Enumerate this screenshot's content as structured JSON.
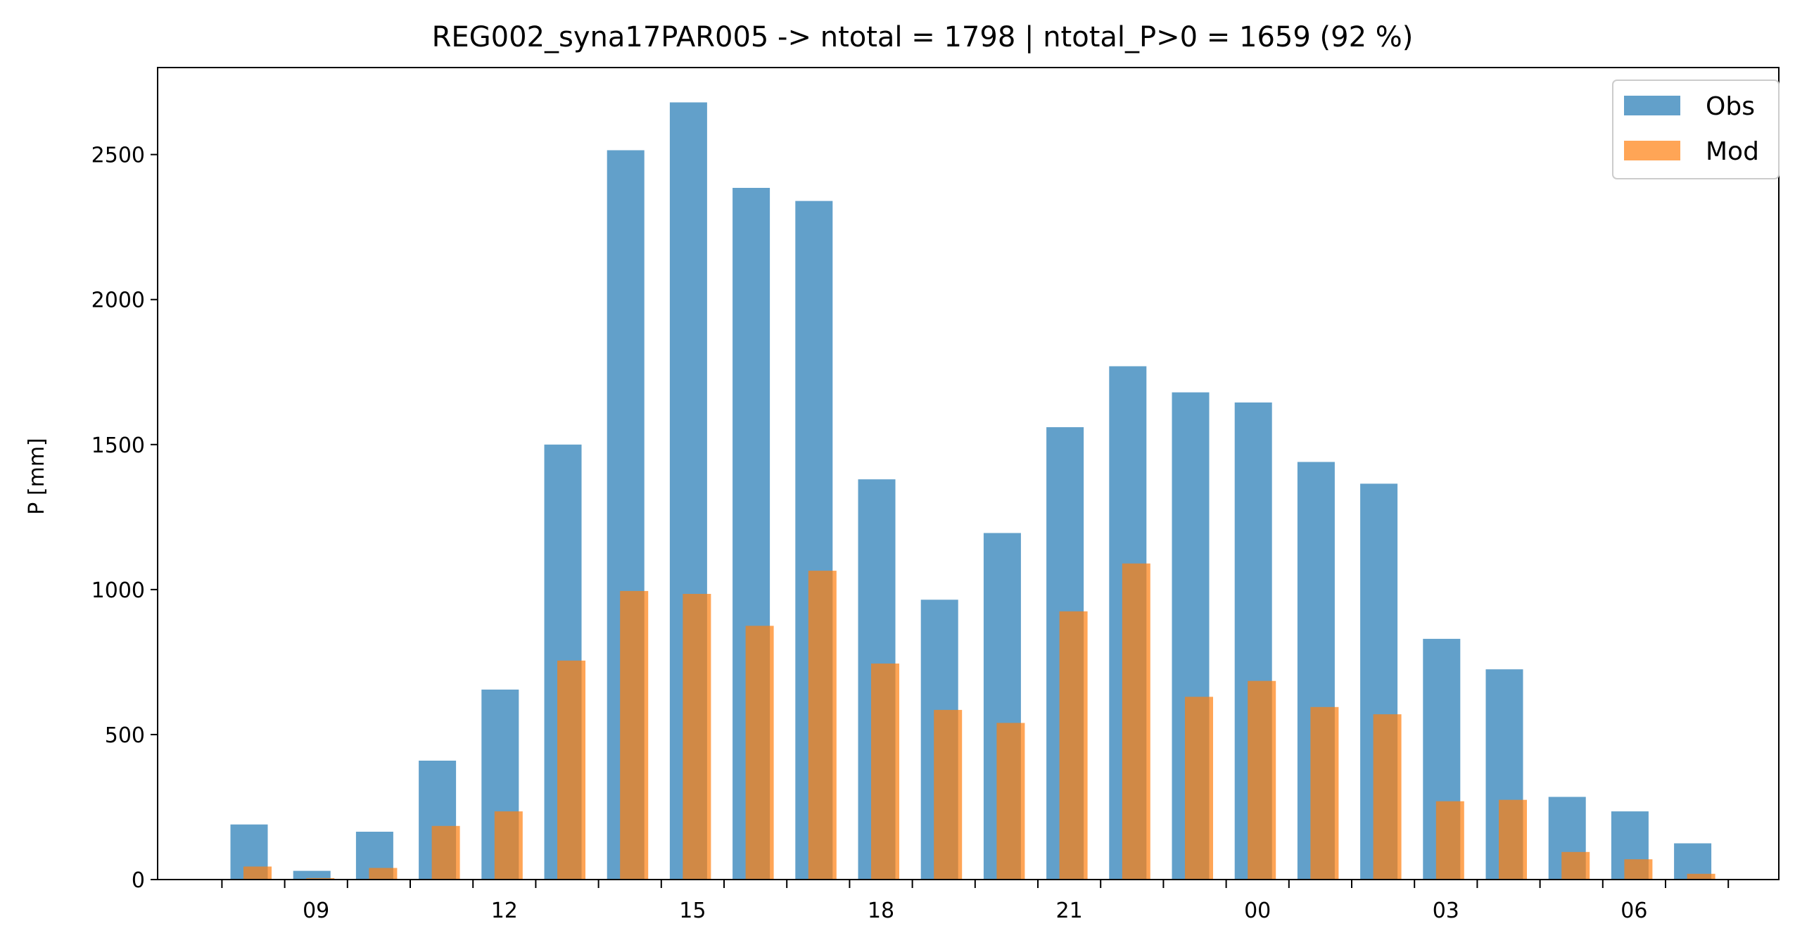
{
  "chart_data": {
    "type": "bar",
    "title": "REG002_syna17PAR005 -> ntotal = 1798 | ntotal_P>0 = 1659 (92 %)",
    "xlabel": "",
    "ylabel": "P [mm]",
    "ylim": [
      0,
      2800
    ],
    "yticks": [
      0,
      500,
      1000,
      1500,
      2000,
      2500
    ],
    "categories": [
      "08",
      "09",
      "10",
      "11",
      "12",
      "13",
      "14",
      "15",
      "16",
      "17",
      "18",
      "19",
      "20",
      "21",
      "22",
      "23",
      "00",
      "01",
      "02",
      "03",
      "04",
      "05",
      "06",
      "07"
    ],
    "xtick_labels": [
      {
        "at": 1,
        "label": "09"
      },
      {
        "at": 4,
        "label": "12"
      },
      {
        "at": 7,
        "label": "15"
      },
      {
        "at": 10,
        "label": "18"
      },
      {
        "at": 13,
        "label": "21"
      },
      {
        "at": 16,
        "label": "00"
      },
      {
        "at": 19,
        "label": "03"
      },
      {
        "at": 22,
        "label": "06"
      }
    ],
    "series": [
      {
        "name": "Obs",
        "color": "#1f77b4",
        "opacity": 0.7,
        "values": [
          190,
          30,
          165,
          410,
          655,
          1500,
          2515,
          2680,
          2385,
          2340,
          1380,
          965,
          1195,
          1560,
          1770,
          1680,
          1645,
          1440,
          1365,
          830,
          725,
          285,
          235,
          125
        ]
      },
      {
        "name": "Mod",
        "color": "#ff7f0e",
        "opacity": 0.7,
        "values": [
          45,
          5,
          40,
          185,
          235,
          755,
          995,
          985,
          875,
          1065,
          745,
          585,
          540,
          925,
          1090,
          630,
          685,
          595,
          570,
          270,
          275,
          95,
          70,
          20
        ]
      }
    ],
    "grid": false,
    "legend": "top-right"
  }
}
